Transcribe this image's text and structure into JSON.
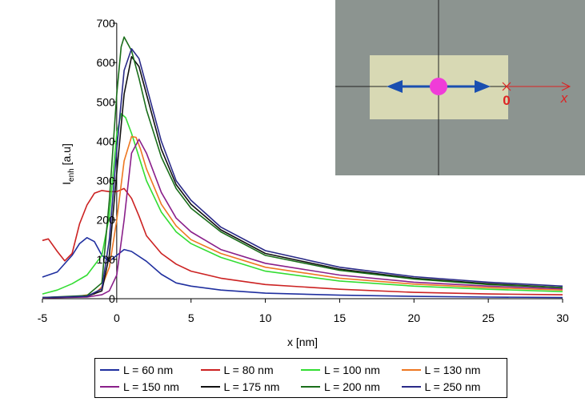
{
  "chart_data": {
    "type": "line",
    "xlabel": "x [nm]",
    "ylabel": "I",
    "ylabel_sub": "enh",
    "ylabel_unit": " [a.u]",
    "xlim": [
      -5,
      30
    ],
    "ylim": [
      0,
      700
    ],
    "xticks": [
      -5,
      0,
      5,
      10,
      15,
      20,
      25,
      30
    ],
    "yticks": [
      0,
      100,
      200,
      300,
      400,
      500,
      600,
      700
    ],
    "legend_position": "bottom",
    "series": [
      {
        "name": "L = 60 nm",
        "color": "#1f2f9f",
        "x": [
          -5,
          -4,
          -3,
          -2.5,
          -2,
          -1.5,
          -1,
          -0.5,
          0,
          0.5,
          1,
          2,
          3,
          4,
          5,
          7,
          10,
          15,
          20,
          25,
          30
        ],
        "y": [
          55,
          68,
          110,
          140,
          155,
          145,
          110,
          95,
          110,
          125,
          120,
          95,
          62,
          40,
          32,
          22,
          14,
          9,
          6,
          4,
          3
        ]
      },
      {
        "name": "L = 80 nm",
        "color": "#cc2222",
        "x": [
          -5,
          -4.6,
          -4,
          -3.5,
          -3,
          -2.5,
          -2,
          -1.5,
          -1,
          -0.5,
          0,
          0.5,
          1,
          1.5,
          2,
          3,
          4,
          5,
          7,
          10,
          15,
          20,
          25,
          30
        ],
        "y": [
          148,
          152,
          120,
          96,
          115,
          190,
          238,
          268,
          275,
          272,
          272,
          280,
          255,
          210,
          160,
          115,
          88,
          70,
          52,
          36,
          24,
          16,
          12,
          10
        ]
      },
      {
        "name": "L = 100 nm",
        "color": "#33dd33",
        "x": [
          -5,
          -4,
          -3,
          -2,
          -1,
          -0.5,
          0,
          0.3,
          0.6,
          1,
          1.5,
          2,
          3,
          4,
          5,
          7,
          10,
          15,
          20,
          25,
          30
        ],
        "y": [
          12,
          22,
          38,
          60,
          110,
          210,
          420,
          470,
          460,
          420,
          360,
          300,
          220,
          170,
          140,
          105,
          70,
          45,
          32,
          24,
          18
        ]
      },
      {
        "name": "L = 130 nm",
        "color": "#ee7722",
        "x": [
          -5,
          -3,
          -1.5,
          -1,
          -0.5,
          0,
          0.5,
          1,
          1.3,
          1.6,
          2,
          3,
          4,
          5,
          7,
          10,
          15,
          20,
          25,
          30
        ],
        "y": [
          2,
          4,
          12,
          30,
          80,
          200,
          350,
          412,
          410,
          380,
          330,
          240,
          185,
          150,
          115,
          80,
          52,
          37,
          28,
          22
        ]
      },
      {
        "name": "L = 150 nm",
        "color": "#8a1f8a",
        "x": [
          -5,
          -2,
          -1,
          -0.5,
          0,
          0.5,
          1,
          1.5,
          2,
          3,
          4,
          5,
          7,
          10,
          15,
          20,
          25,
          30
        ],
        "y": [
          2,
          4,
          10,
          20,
          60,
          200,
          370,
          405,
          370,
          270,
          205,
          170,
          125,
          90,
          60,
          42,
          32,
          25
        ]
      },
      {
        "name": "L = 175 nm",
        "color": "#111111",
        "x": [
          -5,
          -2,
          -1,
          -0.5,
          0,
          0.5,
          1,
          1.5,
          2,
          3,
          4,
          5,
          7,
          10,
          15,
          20,
          25,
          30
        ],
        "y": [
          3,
          6,
          20,
          110,
          320,
          520,
          615,
          590,
          520,
          380,
          290,
          240,
          175,
          115,
          75,
          52,
          38,
          28
        ]
      },
      {
        "name": "L = 200 nm",
        "color": "#1a6e1a",
        "x": [
          -5,
          -2,
          -1,
          -0.5,
          0,
          0.3,
          0.5,
          1,
          1.5,
          2,
          3,
          4,
          5,
          7,
          10,
          15,
          20,
          25,
          30
        ],
        "y": [
          3,
          8,
          40,
          250,
          520,
          640,
          665,
          630,
          560,
          480,
          360,
          280,
          230,
          170,
          110,
          72,
          50,
          36,
          28
        ]
      },
      {
        "name": "L = 250 nm",
        "color": "#2a2a88",
        "x": [
          -5,
          -2,
          -1,
          -0.5,
          0,
          0.5,
          1,
          1.5,
          2,
          3,
          4,
          5,
          7,
          10,
          15,
          20,
          25,
          30
        ],
        "y": [
          3,
          6,
          25,
          150,
          380,
          580,
          635,
          610,
          540,
          400,
          300,
          250,
          182,
          122,
          80,
          56,
          42,
          32
        ]
      }
    ]
  },
  "inset": {
    "origin_label": "0",
    "axis_label": "x",
    "background_color": "#8c9490",
    "particle_color": "#f03cd8",
    "arrow_color": "#1a4fb0",
    "marker_color": "#dd2222",
    "rectangle_color": "#d8d9b4"
  }
}
